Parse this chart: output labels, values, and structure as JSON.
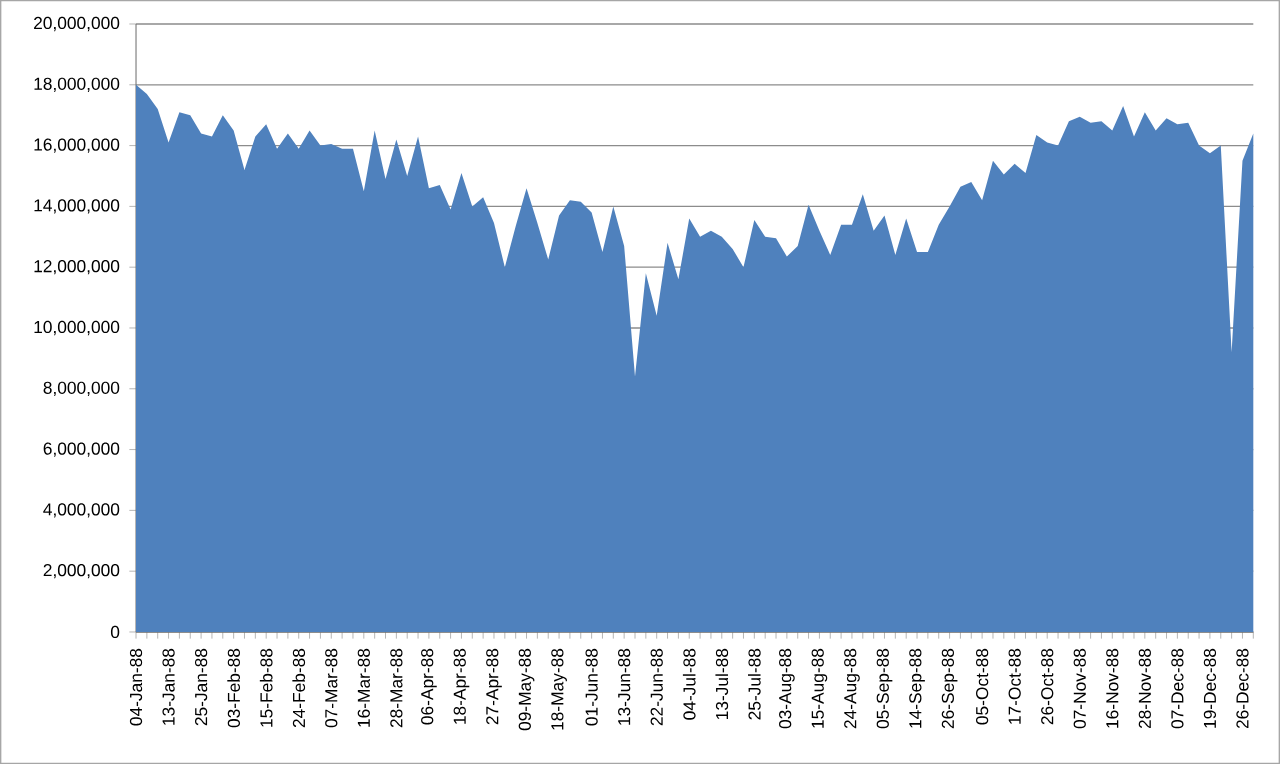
{
  "chart_data": {
    "type": "area",
    "color": "#4f81bd",
    "grid": "y",
    "categories": [
      "04-Jan-88",
      null,
      null,
      "13-Jan-88",
      null,
      null,
      "25-Jan-88",
      null,
      null,
      "03-Feb-88",
      null,
      null,
      "15-Feb-88",
      null,
      null,
      "24-Feb-88",
      null,
      null,
      "07-Mar-88",
      null,
      null,
      "16-Mar-88",
      null,
      null,
      "28-Mar-88",
      null,
      null,
      "06-Apr-88",
      null,
      null,
      "18-Apr-88",
      null,
      null,
      "27-Apr-88",
      null,
      null,
      "09-May-88",
      null,
      null,
      "18-May-88",
      null,
      null,
      "01-Jun-88",
      null,
      null,
      "13-Jun-88",
      null,
      null,
      "22-Jun-88",
      null,
      null,
      "04-Jul-88",
      null,
      null,
      "13-Jul-88",
      null,
      null,
      "25-Jul-88",
      null,
      null,
      "03-Aug-88",
      null,
      null,
      "15-Aug-88",
      null,
      null,
      "24-Aug-88",
      null,
      null,
      "05-Sep-88",
      null,
      null,
      "14-Sep-88",
      null,
      null,
      "26-Sep-88",
      null,
      null,
      "05-Oct-88",
      null,
      null,
      "17-Oct-88",
      null,
      null,
      "26-Oct-88",
      null,
      null,
      "07-Nov-88",
      null,
      null,
      "16-Nov-88",
      null,
      null,
      "28-Nov-88",
      null,
      null,
      "07-Dec-88",
      null,
      null,
      "19-Dec-88",
      null,
      null,
      "26-Dec-88",
      null
    ],
    "values": [
      18000000,
      17700000,
      17200000,
      16100000,
      17100000,
      17000000,
      16400000,
      16300000,
      17000000,
      16500000,
      15200000,
      16300000,
      16700000,
      15900000,
      16400000,
      15900000,
      16500000,
      16000000,
      16050000,
      15900000,
      15900000,
      14500000,
      16500000,
      14900000,
      16200000,
      15000000,
      16300000,
      14600000,
      14700000,
      13900000,
      15100000,
      14000000,
      14300000,
      13450000,
      12000000,
      13350000,
      14600000,
      13450000,
      12250000,
      13700000,
      14200000,
      14150000,
      13800000,
      12500000,
      14000000,
      12700000,
      8400000,
      11800000,
      10400000,
      12800000,
      11600000,
      13600000,
      13000000,
      13200000,
      13000000,
      12600000,
      12000000,
      13550000,
      13000000,
      12950000,
      12350000,
      12700000,
      14050000,
      13200000,
      12400000,
      13400000,
      13400000,
      14400000,
      13200000,
      13700000,
      12400000,
      13600000,
      12500000,
      12500000,
      13400000,
      14000000,
      14650000,
      14800000,
      14200000,
      15500000,
      15050000,
      15400000,
      15100000,
      16350000,
      16100000,
      16000000,
      16800000,
      16950000,
      16750000,
      16800000,
      16500000,
      17300000,
      16300000,
      17100000,
      16500000,
      16900000,
      16700000,
      16750000,
      16000000,
      15750000,
      16000000,
      9200000,
      15500000,
      16400000
    ],
    "ylim": [
      0,
      20000000
    ],
    "yticks": [
      {
        "value": 0,
        "label": "0"
      },
      {
        "value": 2000000,
        "label": "2,000,000"
      },
      {
        "value": 4000000,
        "label": "4,000,000"
      },
      {
        "value": 6000000,
        "label": "6,000,000"
      },
      {
        "value": 8000000,
        "label": "8,000,000"
      },
      {
        "value": 10000000,
        "label": "10,000,000"
      },
      {
        "value": 12000000,
        "label": "12,000,000"
      },
      {
        "value": 14000000,
        "label": "14,000,000"
      },
      {
        "value": 16000000,
        "label": "16,000,000"
      },
      {
        "value": 18000000,
        "label": "18,000,000"
      },
      {
        "value": 20000000,
        "label": "20,000,000"
      }
    ]
  }
}
